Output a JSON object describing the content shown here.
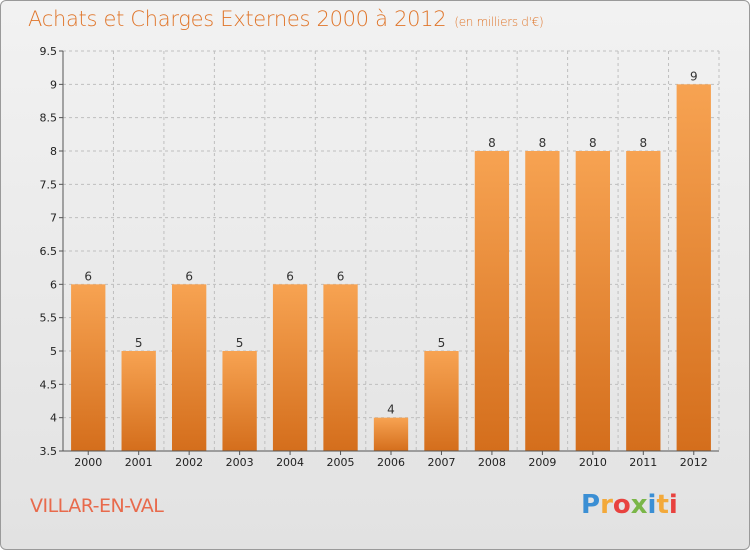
{
  "header": {
    "title": "Achats et Charges Externes 2000 à 2012",
    "subtitle": "(en milliers d'€)"
  },
  "footer": {
    "place": "VILLAR-EN-VAL",
    "logo_letters": [
      "P",
      "r",
      "o",
      "x",
      "i",
      "t",
      "i"
    ],
    "logo_colors": [
      "#3b8fd4",
      "#f3a93a",
      "#e8423f",
      "#7ab648",
      "#3b8fd4",
      "#f3a93a",
      "#e8423f"
    ]
  },
  "colors": {
    "bar_top": "#f7a352",
    "bar_bottom": "#d46e1c",
    "grid": "#bfbfbf"
  },
  "chart_data": {
    "type": "bar",
    "categories": [
      "2000",
      "2001",
      "2002",
      "2003",
      "2004",
      "2005",
      "2006",
      "2007",
      "2008",
      "2009",
      "2010",
      "2011",
      "2012"
    ],
    "values": [
      6,
      5,
      6,
      5,
      6,
      6,
      4,
      5,
      8,
      8,
      8,
      8,
      9
    ],
    "ylim": [
      3.5,
      9.5
    ],
    "yticks": [
      3.5,
      4,
      4.5,
      5,
      5.5,
      6,
      6.5,
      7,
      7.5,
      8,
      8.5,
      9,
      9.5
    ],
    "grid": true,
    "xlabel": "",
    "ylabel": ""
  }
}
